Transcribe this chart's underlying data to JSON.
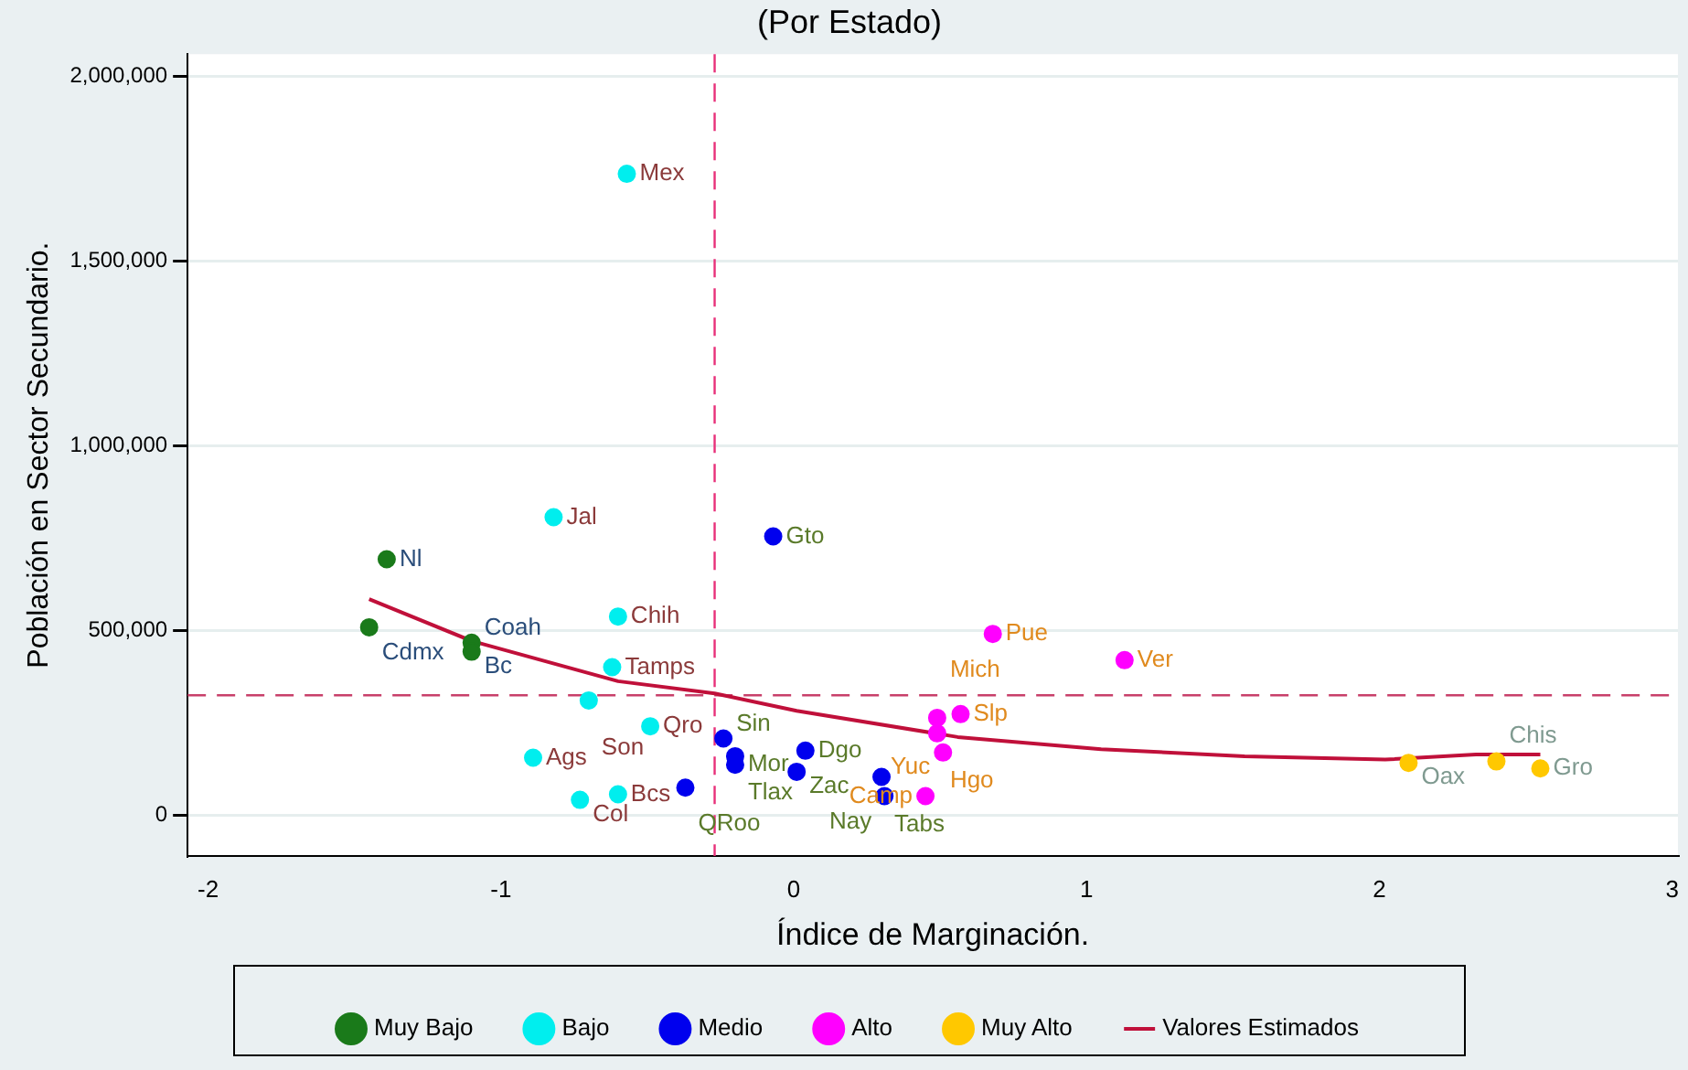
{
  "chart_data": {
    "type": "scatter",
    "title": "(Por Estado)",
    "xlabel": "Índice de Marginación.",
    "ylabel": "Población en Sector Secundario.",
    "xlim": [
      -2.07,
      3.02
    ],
    "xticks": [
      -2,
      -1,
      0,
      1,
      2,
      3
    ],
    "ylim": [
      -110000,
      2060000
    ],
    "yticks": [
      {
        "value": 0,
        "label": "0"
      },
      {
        "value": 500000,
        "label": "500,000"
      },
      {
        "value": 1000000,
        "label": "1,000,000"
      },
      {
        "value": 1500000,
        "label": "1,500,000"
      },
      {
        "value": 2000000,
        "label": "2,000,000"
      }
    ],
    "grid": "y",
    "legend": "bottom",
    "marker": "circle",
    "ref_lines": [
      {
        "axis": "x",
        "value": -0.27,
        "color": "#e8307a",
        "line_style": "dashed"
      },
      {
        "axis": "y",
        "value": 325000,
        "color": "#c8406a",
        "line_style": "dashed"
      }
    ],
    "series": [
      {
        "name": "Muy Bajo",
        "color": "#1a7a1a",
        "x": [
          -1.39,
          -1.45,
          -1.1,
          -1.1
        ],
        "values": [
          693000,
          509000,
          467000,
          443000
        ],
        "value_labels": [
          "Nl",
          "Cdmx",
          "Coah",
          "Bc"
        ]
      },
      {
        "name": "Bajo",
        "color": "#00eeee",
        "x": [
          -0.57,
          -0.82,
          -0.6,
          -0.62,
          -0.7,
          -0.49,
          -0.89,
          -0.6,
          -0.73
        ],
        "values": [
          1736000,
          807000,
          538000,
          401000,
          311000,
          241000,
          156000,
          57000,
          42000
        ],
        "value_labels": [
          "Mex",
          "Jal",
          "Chih",
          "Tamps",
          "Son",
          "Qro",
          "Ags",
          "Bcs",
          "Col"
        ]
      },
      {
        "name": "Medio",
        "color": "#0000ee",
        "x": [
          -0.07,
          -0.24,
          -0.2,
          -0.2,
          0.04,
          0.01,
          -0.37,
          0.3,
          0.31
        ],
        "values": [
          755000,
          208000,
          160000,
          137000,
          175000,
          118000,
          75000,
          104000,
          52000
        ],
        "value_labels": [
          "Gto",
          "Sin",
          "Tlax",
          "Mor",
          "Dgo",
          "Zac",
          "QRoo",
          "Tabs",
          "Nay"
        ]
      },
      {
        "name": "Alto",
        "color": "#ff00ff",
        "x": [
          0.68,
          1.13,
          0.57,
          0.49,
          0.49,
          0.51,
          0.45
        ],
        "values": [
          491000,
          420000,
          274000,
          264000,
          222000,
          170000,
          52000
        ],
        "value_labels": [
          "Pue",
          "Ver",
          "Slp",
          "Mich",
          "Hgo",
          "Yuc",
          "Camp"
        ]
      },
      {
        "name": "Muy Alto",
        "color": "#ffc800",
        "x": [
          2.1,
          2.4,
          2.55
        ],
        "values": [
          142000,
          146000,
          127000
        ],
        "value_labels": [
          "Oax",
          "Chis",
          "Gro"
        ]
      },
      {
        "name": "Valores Estimados",
        "type": "line",
        "color": "#c0103a",
        "marker": "none",
        "x": [
          -1.45,
          -1.1,
          -0.6,
          -0.27,
          0.01,
          0.56,
          1.05,
          1.54,
          2.02,
          2.33,
          2.55
        ],
        "values": [
          585000,
          472000,
          363000,
          330000,
          283000,
          212000,
          179000,
          160000,
          151000,
          165000,
          165000
        ]
      }
    ]
  }
}
